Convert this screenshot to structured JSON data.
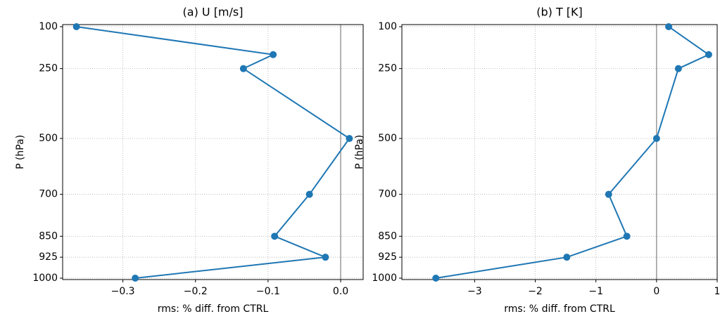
{
  "chart_data": [
    {
      "type": "line",
      "title": "(a) U [m/s]",
      "xlabel": "rms: % diff. from CTRL",
      "ylabel": "P (hPa)",
      "y": [
        100,
        200,
        250,
        500,
        700,
        850,
        925,
        1000
      ],
      "series": [
        {
          "color": "#1f77b4",
          "values": [
            -0.364,
            -0.093,
            -0.134,
            0.012,
            -0.043,
            -0.091,
            -0.021,
            -0.283
          ]
        }
      ],
      "xlim": [
        -0.383,
        0.031
      ],
      "xticks": [
        {
          "value": -0.3,
          "label": "−0.3"
        },
        {
          "value": -0.2,
          "label": "−0.2"
        },
        {
          "value": -0.1,
          "label": "−0.1"
        },
        {
          "value": 0.0,
          "label": "0.0"
        }
      ],
      "ylim": [
        1005,
        92.5
      ],
      "yticks": [
        100,
        250,
        500,
        700,
        850,
        925,
        1000
      ],
      "axvline": 0,
      "grid": true
    },
    {
      "type": "line",
      "title": "(b) T [K]",
      "xlabel": "rms: % diff. from CTRL",
      "ylabel": "P (hPa)",
      "y": [
        100,
        200,
        250,
        500,
        700,
        850,
        925,
        1000
      ],
      "series": [
        {
          "color": "#1f77b4",
          "values": [
            0.2,
            0.86,
            0.36,
            0,
            -0.79,
            -0.49,
            -1.48,
            -3.64
          ]
        }
      ],
      "xlim": [
        -4.2,
        1.0
      ],
      "xticks": [
        {
          "value": -3,
          "label": "−3"
        },
        {
          "value": -2,
          "label": "−2"
        },
        {
          "value": -1,
          "label": "−1"
        },
        0,
        1
      ],
      "ylim": [
        1005,
        92.5
      ],
      "yticks": [
        100,
        250,
        500,
        700,
        850,
        925,
        1000
      ],
      "axvline": 0,
      "grid": true
    }
  ]
}
